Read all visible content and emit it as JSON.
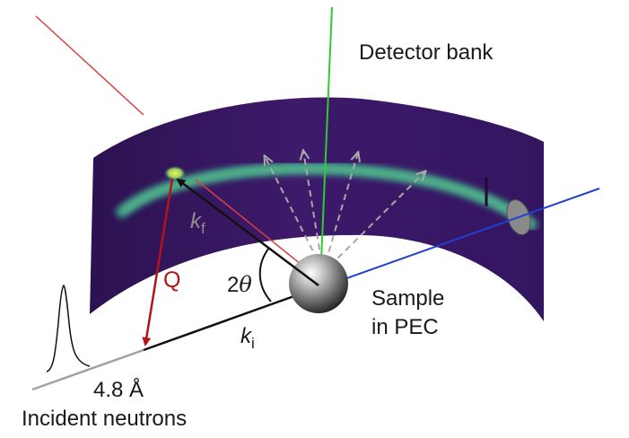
{
  "labels": {
    "detector": "Detector bank",
    "sample_line1": "Sample",
    "sample_line2": "in PEC",
    "q": "Q",
    "kf_symbol": "k",
    "kf_subscript": "f",
    "ki_symbol": "k",
    "ki_subscript": "i",
    "angle_number": "2",
    "angle_symbol": "θ",
    "wavelength": "4.8 Å",
    "incident": "Incident neutrons"
  },
  "colors": {
    "detector_background": "#3e1a6a",
    "diffraction_ring": "#3fa38a",
    "ring_hotspot": "#d8e23a",
    "vertical_axis": "#2ecc2e",
    "red_line": "#d94040",
    "blue_axis": "#2040d0",
    "q_vector": "#b3141b",
    "wavevectors": "#111111",
    "scattered_arrows": "#a8a8a8",
    "beam_line": "#a0a0a0",
    "sample": "#5a5a5a"
  }
}
